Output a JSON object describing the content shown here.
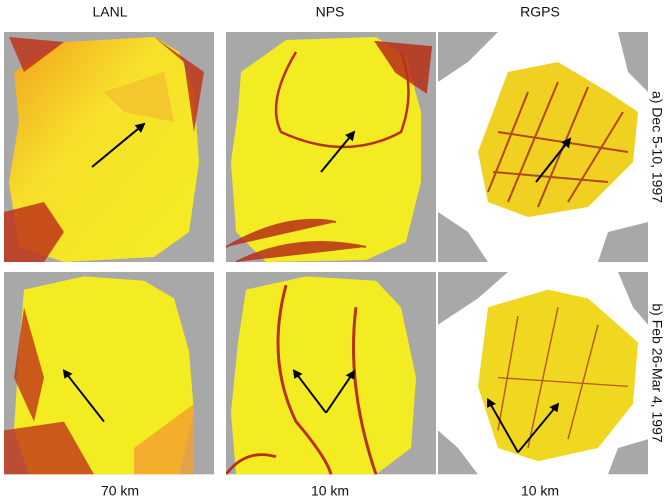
{
  "columns": [
    "LANL",
    "NPS",
    "RGPS"
  ],
  "rows": [
    "a) Dec 5-10, 1997",
    "b) Feb 26-Mar 4, 1997"
  ],
  "scales": [
    "70 km",
    "10 km",
    "10 km"
  ]
}
